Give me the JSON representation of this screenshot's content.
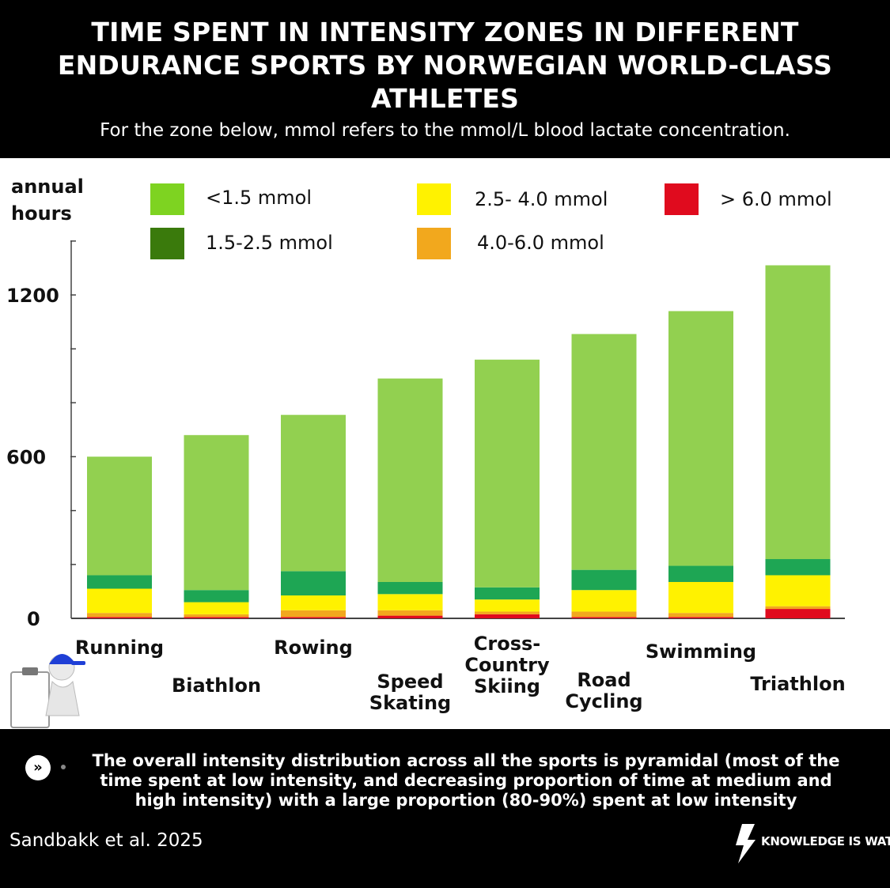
{
  "header": {
    "title": "TIME SPENT IN INTENSITY ZONES IN DIFFERENT ENDURANCE SPORTS BY NORWEGIAN WORLD-CLASS ATHLETES",
    "subtitle": "For the zone below, mmol refers to the mmol/L blood lactate concentration."
  },
  "chart_data": {
    "type": "bar",
    "stacked": true,
    "ylabel": "annual hours",
    "ylim": [
      0,
      1200
    ],
    "yticks": [
      0,
      600,
      1200
    ],
    "legend_position": "top",
    "grid": false,
    "categories": [
      [
        "Running"
      ],
      [
        "Biathlon"
      ],
      [
        "Rowing"
      ],
      [
        "Speed",
        "Skating"
      ],
      [
        "Cross-",
        "Country",
        "Skiing"
      ],
      [
        "Road",
        "Cycling"
      ],
      [
        "Swimming"
      ],
      [
        "Triathlon"
      ]
    ],
    "category_names": [
      "Running",
      "Biathlon",
      "Rowing",
      "Speed Skating",
      "Cross-Country Skiing",
      "Road Cycling",
      "Swimming",
      "Triathlon"
    ],
    "series": [
      {
        "name": "> 6.0 mmol",
        "color": "#e00b1e",
        "values": [
          5,
          5,
          5,
          10,
          15,
          5,
          5,
          35
        ]
      },
      {
        "name": "4.0-6.0 mmol",
        "color": "#f2a81d",
        "values": [
          15,
          10,
          25,
          20,
          10,
          20,
          15,
          10
        ]
      },
      {
        "name": "2.5- 4.0 mmol",
        "color": "#fff200",
        "values": [
          90,
          45,
          55,
          60,
          45,
          80,
          115,
          115
        ]
      },
      {
        "name": "1.5-2.5 mmol",
        "color": "#1ea654",
        "values": [
          50,
          45,
          90,
          45,
          45,
          75,
          60,
          60
        ]
      },
      {
        "name": "<1.5 mmol",
        "color": "#92d050",
        "values": [
          440,
          575,
          580,
          755,
          845,
          875,
          945,
          1090
        ]
      }
    ],
    "legend": [
      {
        "name": "<1.5 mmol",
        "color": "#7ed321"
      },
      {
        "name": "1.5-2.5 mmol",
        "color": "#3a7a0c"
      },
      {
        "name": "2.5- 4.0 mmol",
        "color": "#fff200"
      },
      {
        "name": "4.0-6.0 mmol",
        "color": "#f2a81d"
      },
      {
        "name": "> 6.0 mmol",
        "color": "#e00b1e"
      }
    ]
  },
  "footer": {
    "takeaway": "The overall intensity distribution across all the sports is pyramidal (most of the time spent at low intensity, and decreasing proportion of time at medium and high intensity) with a large proportion (80-90%) spent at low intensity",
    "citation": "Sandbakk et al. 2025",
    "brand": "KNOWLEDGE IS WATT",
    "arrow_icon": "double-chevron-right-icon",
    "bolt_icon": "lightning-bolt-icon"
  }
}
